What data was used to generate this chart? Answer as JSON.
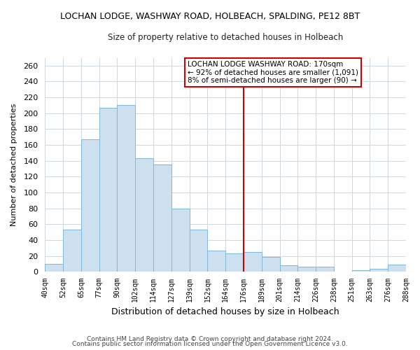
{
  "title": "LOCHAN LODGE, WASHWAY ROAD, HOLBEACH, SPALDING, PE12 8BT",
  "subtitle": "Size of property relative to detached houses in Holbeach",
  "xlabel": "Distribution of detached houses by size in Holbeach",
  "ylabel": "Number of detached properties",
  "bar_labels": [
    "40sqm",
    "52sqm",
    "65sqm",
    "77sqm",
    "90sqm",
    "102sqm",
    "114sqm",
    "127sqm",
    "139sqm",
    "152sqm",
    "164sqm",
    "176sqm",
    "189sqm",
    "201sqm",
    "214sqm",
    "226sqm",
    "238sqm",
    "251sqm",
    "263sqm",
    "276sqm",
    "288sqm"
  ],
  "all_values": [
    10,
    53,
    167,
    207,
    210,
    143,
    135,
    80,
    53,
    27,
    23,
    25,
    19,
    8,
    6,
    6,
    0,
    2,
    4,
    9
  ],
  "bar_face_color": "#cce0f0",
  "bar_edge_color": "#7fb8d8",
  "vline_color": "#cc0000",
  "vline_x_idx": 11,
  "ylim": [
    0,
    270
  ],
  "yticks": [
    0,
    20,
    40,
    60,
    80,
    100,
    120,
    140,
    160,
    180,
    200,
    220,
    240,
    260
  ],
  "annotation_title": "LOCHAN LODGE WASHWAY ROAD: 170sqm",
  "annotation_line1": "← 92% of detached houses are smaller (1,091)",
  "annotation_line2": "8% of semi-detached houses are larger (90) →",
  "footer1": "Contains HM Land Registry data © Crown copyright and database right 2024.",
  "footer2": "Contains public sector information licensed under the Open Government Licence v3.0.",
  "background_color": "#ffffff",
  "grid_color": "#d0d8e0"
}
